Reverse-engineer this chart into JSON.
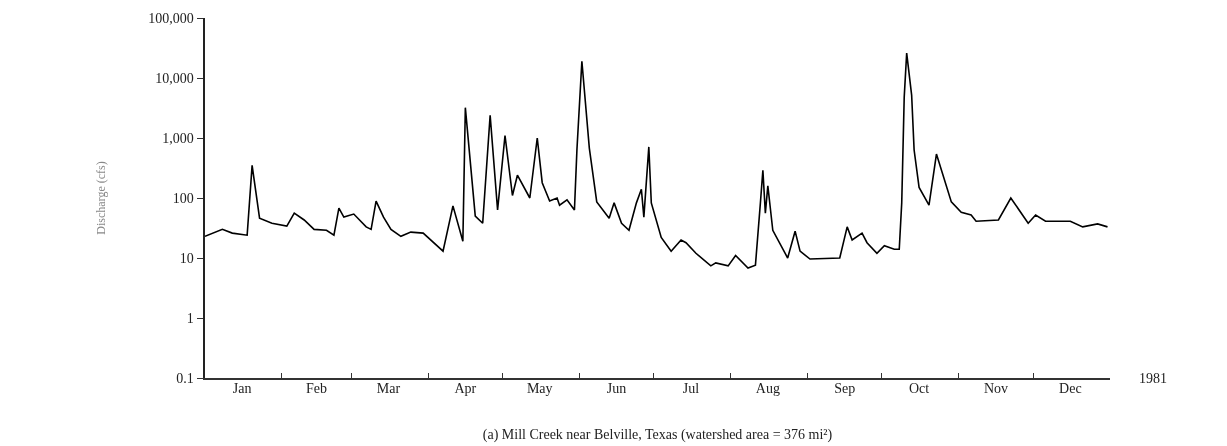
{
  "chart_data": {
    "type": "line",
    "title": "(a) Mill Creek near Belville, Texas (watershed area = 376 mi²)",
    "ylabel": "Discharge (cfs)",
    "log": true,
    "grid": false,
    "annotations": [
      "1981"
    ],
    "xlim": [
      "1981-01-01",
      "1982-01-01"
    ],
    "xticks": [
      {
        "value": "1981-01-01",
        "label": null
      },
      {
        "value": "1981-01-16",
        "label": "Jan"
      },
      {
        "value": "1981-02-01",
        "label": null
      },
      {
        "value": "1981-02-15",
        "label": "Feb"
      },
      {
        "value": "1981-03-01",
        "label": null
      },
      {
        "value": "1981-03-16",
        "label": "Mar"
      },
      {
        "value": "1981-04-01",
        "label": null
      },
      {
        "value": "1981-04-16",
        "label": "Apr"
      },
      {
        "value": "1981-05-01",
        "label": null
      },
      {
        "value": "1981-05-16",
        "label": "May"
      },
      {
        "value": "1981-06-01",
        "label": null
      },
      {
        "value": "1981-06-16",
        "label": "Jun"
      },
      {
        "value": "1981-07-01",
        "label": null
      },
      {
        "value": "1981-07-16",
        "label": "Jul"
      },
      {
        "value": "1981-08-01",
        "label": null
      },
      {
        "value": "1981-08-16",
        "label": "Aug"
      },
      {
        "value": "1981-09-01",
        "label": null
      },
      {
        "value": "1981-09-16",
        "label": "Sep"
      },
      {
        "value": "1981-10-01",
        "label": null
      },
      {
        "value": "1981-10-16",
        "label": "Oct"
      },
      {
        "value": "1981-11-01",
        "label": null
      },
      {
        "value": "1981-11-16",
        "label": "Nov"
      },
      {
        "value": "1981-12-01",
        "label": null
      },
      {
        "value": "1981-12-16",
        "label": "Dec"
      }
    ],
    "ylim": [
      0.1,
      100000
    ],
    "yticks": [
      {
        "value": 0.1,
        "label": "0.1"
      },
      1,
      10,
      100,
      {
        "value": 1000,
        "label": "1,000"
      },
      {
        "value": 10000,
        "label": "10,000"
      },
      {
        "value": 100000,
        "label": "100,000"
      }
    ],
    "series": [
      {
        "color": "#000000",
        "line_style": "solid",
        "x": [
          "1981-01-01",
          "1981-01-08",
          "1981-01-12",
          "1981-01-18",
          "1981-01-20",
          "1981-01-23",
          "1981-01-28",
          "1981-02-03",
          "1981-02-06",
          "1981-02-10",
          "1981-02-14",
          "1981-02-19",
          "1981-02-22",
          "1981-02-24",
          "1981-02-26",
          "1981-03-02",
          "1981-03-07",
          "1981-03-09",
          "1981-03-11",
          "1981-03-14",
          "1981-03-17",
          "1981-03-21",
          "1981-03-25",
          "1981-03-30",
          "1981-04-07",
          "1981-04-11",
          "1981-04-15",
          "1981-04-16",
          "1981-04-20",
          "1981-04-23",
          "1981-04-26",
          "1981-04-29",
          "1981-05-02",
          "1981-05-05",
          "1981-05-07",
          "1981-05-12",
          "1981-05-15",
          "1981-05-17",
          "1981-05-20",
          "1981-05-23",
          "1981-05-24",
          "1981-05-27",
          "1981-05-30",
          "1981-05-31",
          "1981-06-02",
          "1981-06-05",
          "1981-06-08",
          "1981-06-13",
          "1981-06-15",
          "1981-06-18",
          "1981-06-21",
          "1981-06-24",
          "1981-06-26",
          "1981-06-27",
          "1981-06-29",
          "1981-06-30",
          "1981-07-04",
          "1981-07-08",
          "1981-07-12",
          "1981-07-14",
          "1981-07-18",
          "1981-07-24",
          "1981-07-26",
          "1981-07-31",
          "1981-08-03",
          "1981-08-08",
          "1981-08-11",
          "1981-08-13",
          "1981-08-14",
          "1981-08-15",
          "1981-08-16",
          "1981-08-18",
          "1981-08-24",
          "1981-08-27",
          "1981-08-29",
          "1981-09-02",
          "1981-09-14",
          "1981-09-17",
          "1981-09-19",
          "1981-09-23",
          "1981-09-25",
          "1981-09-29",
          "1981-10-02",
          "1981-10-06",
          "1981-10-08",
          "1981-10-09",
          "1981-10-10",
          "1981-10-11",
          "1981-10-13",
          "1981-10-14",
          "1981-10-16",
          "1981-10-20",
          "1981-10-23",
          "1981-10-29",
          "1981-11-02",
          "1981-11-06",
          "1981-11-08",
          "1981-11-17",
          "1981-11-22",
          "1981-11-29",
          "1981-12-02",
          "1981-12-06",
          "1981-12-16",
          "1981-12-21",
          "1981-12-27",
          "1981-12-31"
        ],
        "values": [
          23,
          30,
          26,
          24,
          350,
          46,
          38,
          34,
          56,
          43,
          30,
          29,
          24,
          68,
          48,
          54,
          33,
          30,
          89,
          48,
          30,
          23,
          27,
          26,
          13,
          74,
          19,
          3200,
          50,
          38,
          2400,
          63,
          1100,
          110,
          240,
          100,
          1000,
          180,
          89,
          100,
          76,
          93,
          63,
          630,
          19000,
          680,
          86,
          46,
          83,
          38,
          29,
          83,
          140,
          48,
          710,
          83,
          22,
          13,
          20,
          18,
          12,
          7.4,
          8.3,
          7.4,
          11,
          6.8,
          7.6,
          83,
          290,
          56,
          160,
          29,
          10,
          28,
          13,
          9.6,
          10,
          33,
          20,
          26,
          18,
          12,
          16,
          14,
          14,
          83,
          4800,
          26000,
          5200,
          630,
          150,
          76,
          540,
          86,
          58,
          52,
          41,
          43,
          100,
          38,
          52,
          41,
          41,
          33,
          37,
          33
        ]
      }
    ]
  }
}
